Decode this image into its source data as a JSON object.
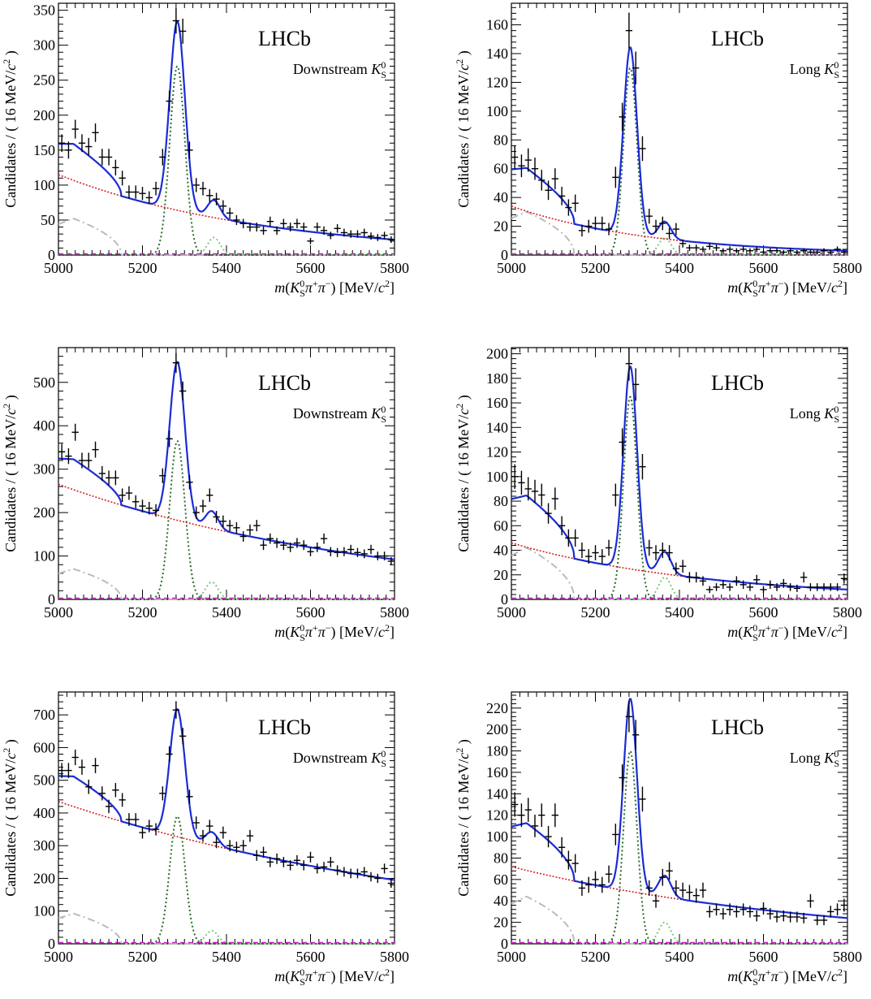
{
  "chart_data": [
    {
      "type": "scatter",
      "experiment": "LHCb",
      "sample": "Downstream",
      "xlabel": "m(K0Sπ+π−) [MeV/c2]",
      "ylabel": "Candidates / ( 16 MeV/c2 )",
      "xlim": [
        5000,
        5800
      ],
      "ylim": [
        0,
        360
      ],
      "xticks": [
        5000,
        5200,
        5400,
        5600,
        5800
      ],
      "yticks": [
        0,
        50,
        100,
        150,
        200,
        250,
        300,
        350
      ],
      "data": {
        "x": [
          5008,
          5024,
          5040,
          5056,
          5072,
          5088,
          5104,
          5120,
          5136,
          5152,
          5168,
          5184,
          5200,
          5216,
          5232,
          5248,
          5264,
          5280,
          5296,
          5312,
          5328,
          5344,
          5360,
          5376,
          5392,
          5408,
          5424,
          5440,
          5456,
          5472,
          5488,
          5504,
          5520,
          5536,
          5552,
          5568,
          5584,
          5600,
          5616,
          5632,
          5648,
          5664,
          5680,
          5696,
          5712,
          5728,
          5744,
          5760,
          5776,
          5792
        ],
        "y": [
          160,
          150,
          180,
          160,
          155,
          175,
          140,
          140,
          125,
          110,
          90,
          90,
          88,
          82,
          95,
          140,
          220,
          335,
          320,
          150,
          100,
          95,
          85,
          80,
          70,
          60,
          50,
          45,
          40,
          40,
          35,
          48,
          35,
          45,
          40,
          45,
          40,
          20,
          40,
          35,
          28,
          38,
          32,
          30,
          30,
          32,
          27,
          25,
          28,
          22
        ]
      },
      "signal": {
        "mean": 5283,
        "sigma": 18,
        "amp": 270
      },
      "bs_signal": {
        "mean": 5370,
        "sigma": 15,
        "amp": 25
      },
      "combinatorial": {
        "at_min": 115,
        "at_max": 22
      },
      "partreco": {
        "amp": 52,
        "edge": 5150
      },
      "line_colors": {
        "total": "#1a2bd6",
        "signal": "#2a6a2a",
        "bs": "#7ec87e",
        "comb": "#d42020",
        "partreco": "#bbbbbb"
      }
    },
    {
      "type": "scatter",
      "experiment": "LHCb",
      "sample": "Long",
      "xlabel": "m(K0Sπ+π−) [MeV/c2]",
      "ylabel": "Candidates / ( 16 MeV/c2 )",
      "xlim": [
        5000,
        5800
      ],
      "ylim": [
        0,
        175
      ],
      "xticks": [
        5000,
        5200,
        5400,
        5600,
        5800
      ],
      "yticks": [
        0,
        20,
        40,
        60,
        80,
        100,
        120,
        140,
        160
      ],
      "data": {
        "x": [
          5008,
          5024,
          5040,
          5056,
          5072,
          5088,
          5104,
          5120,
          5136,
          5152,
          5168,
          5184,
          5200,
          5216,
          5232,
          5248,
          5264,
          5280,
          5296,
          5312,
          5328,
          5344,
          5360,
          5376,
          5392,
          5408,
          5424,
          5440,
          5456,
          5472,
          5488,
          5504,
          5520,
          5536,
          5552,
          5568,
          5584,
          5600,
          5616,
          5632,
          5648,
          5664,
          5680,
          5696,
          5712,
          5728,
          5744,
          5760,
          5776,
          5792
        ],
        "y": [
          68,
          62,
          66,
          60,
          52,
          45,
          53,
          41,
          33,
          36,
          17,
          20,
          22,
          22,
          18,
          54,
          96,
          156,
          130,
          74,
          27,
          20,
          22,
          15,
          18,
          8,
          5,
          5,
          4,
          6,
          5,
          3,
          4,
          3,
          4,
          3,
          4,
          2,
          3,
          3,
          2,
          3,
          2,
          3,
          2,
          2,
          3,
          2,
          4,
          2
        ]
      },
      "signal": {
        "mean": 5283,
        "sigma": 16,
        "amp": 130
      },
      "bs_signal": {
        "mean": 5365,
        "sigma": 15,
        "amp": 12
      },
      "combinatorial": {
        "at_min": 34,
        "at_max": 3
      },
      "partreco": {
        "amp": 30,
        "edge": 5150
      },
      "line_colors": {
        "total": "#1a2bd6",
        "signal": "#2a6a2a",
        "bs": "#7ec87e",
        "comb": "#d42020",
        "partreco": "#bbbbbb"
      }
    },
    {
      "type": "scatter",
      "experiment": "LHCb",
      "sample": "Downstream",
      "xlabel": "m(K0Sπ+π−) [MeV/c2]",
      "ylabel": "Candidates / ( 16 MeV/c2 )",
      "xlim": [
        5000,
        5800
      ],
      "ylim": [
        0,
        580
      ],
      "xticks": [
        5000,
        5200,
        5400,
        5600,
        5800
      ],
      "yticks": [
        0,
        100,
        200,
        300,
        400,
        500
      ],
      "data": {
        "x": [
          5008,
          5024,
          5040,
          5056,
          5072,
          5088,
          5104,
          5120,
          5136,
          5152,
          5168,
          5184,
          5200,
          5216,
          5232,
          5248,
          5264,
          5280,
          5296,
          5312,
          5328,
          5344,
          5360,
          5376,
          5392,
          5408,
          5424,
          5440,
          5456,
          5472,
          5488,
          5504,
          5520,
          5536,
          5552,
          5568,
          5584,
          5600,
          5616,
          5632,
          5648,
          5664,
          5680,
          5696,
          5712,
          5728,
          5744,
          5760,
          5776,
          5792
        ],
        "y": [
          340,
          330,
          385,
          320,
          320,
          345,
          290,
          280,
          280,
          240,
          245,
          225,
          215,
          210,
          205,
          285,
          370,
          545,
          480,
          270,
          200,
          215,
          240,
          190,
          180,
          170,
          165,
          145,
          160,
          170,
          125,
          140,
          130,
          125,
          120,
          130,
          125,
          110,
          120,
          140,
          110,
          108,
          110,
          115,
          108,
          105,
          115,
          100,
          100,
          88
        ]
      },
      "signal": {
        "mean": 5283,
        "sigma": 18,
        "amp": 365
      },
      "bs_signal": {
        "mean": 5365,
        "sigma": 15,
        "amp": 40
      },
      "combinatorial": {
        "at_min": 265,
        "at_max": 92
      },
      "partreco": {
        "amp": 70,
        "edge": 5150
      },
      "line_colors": {
        "total": "#1a2bd6",
        "signal": "#2a6a2a",
        "bs": "#7ec87e",
        "comb": "#d42020",
        "partreco": "#bbbbbb"
      }
    },
    {
      "type": "scatter",
      "experiment": "LHCb",
      "sample": "Long",
      "xlabel": "m(K0Sπ+π−) [MeV/c2]",
      "ylabel": "Candidates / ( 16 MeV/c2 )",
      "xlim": [
        5000,
        5800
      ],
      "ylim": [
        0,
        205
      ],
      "xticks": [
        5000,
        5200,
        5400,
        5600,
        5800
      ],
      "yticks": [
        0,
        20,
        40,
        60,
        80,
        100,
        120,
        140,
        160,
        180,
        200
      ],
      "data": {
        "x": [
          5008,
          5024,
          5040,
          5056,
          5072,
          5088,
          5104,
          5120,
          5136,
          5152,
          5168,
          5184,
          5200,
          5216,
          5232,
          5248,
          5264,
          5280,
          5296,
          5312,
          5328,
          5344,
          5360,
          5376,
          5392,
          5408,
          5424,
          5440,
          5456,
          5472,
          5488,
          5504,
          5520,
          5536,
          5552,
          5568,
          5584,
          5600,
          5616,
          5632,
          5648,
          5664,
          5680,
          5696,
          5712,
          5728,
          5744,
          5760,
          5776,
          5792
        ],
        "y": [
          100,
          95,
          90,
          88,
          85,
          70,
          82,
          60,
          50,
          50,
          40,
          35,
          38,
          35,
          42,
          85,
          128,
          192,
          175,
          108,
          42,
          38,
          40,
          38,
          25,
          27,
          18,
          18,
          15,
          8,
          10,
          12,
          10,
          15,
          12,
          10,
          16,
          8,
          12,
          10,
          13,
          10,
          9,
          18,
          10,
          10,
          10,
          10,
          10,
          17
        ]
      },
      "signal": {
        "mean": 5283,
        "sigma": 16,
        "amp": 165
      },
      "bs_signal": {
        "mean": 5365,
        "sigma": 15,
        "amp": 18
      },
      "combinatorial": {
        "at_min": 46,
        "at_max": 8
      },
      "partreco": {
        "amp": 42,
        "edge": 5150
      },
      "line_colors": {
        "total": "#1a2bd6",
        "signal": "#2a6a2a",
        "bs": "#7ec87e",
        "comb": "#d42020",
        "partreco": "#bbbbbb"
      }
    },
    {
      "type": "scatter",
      "experiment": "LHCb",
      "sample": "Downstream",
      "xlabel": "m(K0Sπ+π−) [MeV/c2]",
      "ylabel": "Candidates / ( 16 MeV/c2 )",
      "xlim": [
        5000,
        5800
      ],
      "ylim": [
        0,
        770
      ],
      "xticks": [
        5000,
        5200,
        5400,
        5600,
        5800
      ],
      "yticks": [
        0,
        100,
        200,
        300,
        400,
        500,
        600,
        700
      ],
      "data": {
        "x": [
          5008,
          5024,
          5040,
          5056,
          5072,
          5088,
          5104,
          5120,
          5136,
          5152,
          5168,
          5184,
          5200,
          5216,
          5232,
          5248,
          5264,
          5280,
          5296,
          5312,
          5328,
          5344,
          5360,
          5376,
          5392,
          5408,
          5424,
          5440,
          5456,
          5472,
          5488,
          5504,
          5520,
          5536,
          5552,
          5568,
          5584,
          5600,
          5616,
          5632,
          5648,
          5664,
          5680,
          5696,
          5712,
          5728,
          5744,
          5760,
          5776,
          5792
        ],
        "y": [
          530,
          530,
          570,
          540,
          480,
          545,
          460,
          420,
          470,
          440,
          380,
          380,
          340,
          360,
          350,
          460,
          580,
          715,
          635,
          450,
          370,
          330,
          360,
          310,
          340,
          300,
          295,
          300,
          330,
          270,
          280,
          250,
          260,
          250,
          240,
          255,
          240,
          265,
          230,
          235,
          250,
          225,
          220,
          215,
          215,
          220,
          205,
          200,
          230,
          185
        ]
      },
      "signal": {
        "mean": 5283,
        "sigma": 18,
        "amp": 390
      },
      "bs_signal": {
        "mean": 5365,
        "sigma": 15,
        "amp": 40
      },
      "combinatorial": {
        "at_min": 435,
        "at_max": 195
      },
      "partreco": {
        "amp": 92,
        "edge": 5150
      },
      "line_colors": {
        "total": "#1a2bd6",
        "signal": "#2a6a2a",
        "bs": "#7ec87e",
        "comb": "#d42020",
        "partreco": "#bbbbbb"
      }
    },
    {
      "type": "scatter",
      "experiment": "LHCb",
      "sample": "Long",
      "xlabel": "m(K0Sπ+π−) [MeV/c2]",
      "ylabel": "Candidates / ( 16 MeV/c2 )",
      "xlim": [
        5000,
        5800
      ],
      "ylim": [
        0,
        235
      ],
      "xticks": [
        5000,
        5200,
        5400,
        5600,
        5800
      ],
      "yticks": [
        0,
        20,
        40,
        60,
        80,
        100,
        120,
        140,
        160,
        180,
        200,
        220
      ],
      "data": {
        "x": [
          5008,
          5024,
          5040,
          5056,
          5072,
          5088,
          5104,
          5120,
          5136,
          5152,
          5168,
          5184,
          5200,
          5216,
          5232,
          5248,
          5264,
          5280,
          5296,
          5312,
          5328,
          5344,
          5360,
          5376,
          5392,
          5408,
          5424,
          5440,
          5456,
          5472,
          5488,
          5504,
          5520,
          5536,
          5552,
          5568,
          5584,
          5600,
          5616,
          5632,
          5648,
          5664,
          5680,
          5696,
          5712,
          5728,
          5744,
          5760,
          5776,
          5792
        ],
        "y": [
          130,
          120,
          125,
          110,
          120,
          100,
          120,
          90,
          78,
          75,
          52,
          55,
          60,
          55,
          65,
          102,
          155,
          212,
          195,
          135,
          52,
          40,
          62,
          68,
          52,
          50,
          48,
          45,
          50,
          30,
          32,
          28,
          32,
          30,
          32,
          30,
          26,
          33,
          28,
          25,
          26,
          25,
          25,
          24,
          40,
          22,
          22,
          30,
          32,
          36
        ]
      },
      "signal": {
        "mean": 5283,
        "sigma": 16,
        "amp": 180
      },
      "bs_signal": {
        "mean": 5365,
        "sigma": 15,
        "amp": 20
      },
      "combinatorial": {
        "at_min": 72,
        "at_max": 24
      },
      "partreco": {
        "amp": 44,
        "edge": 5150
      },
      "line_colors": {
        "total": "#1a2bd6",
        "signal": "#2a6a2a",
        "bs": "#7ec87e",
        "comb": "#d42020",
        "partreco": "#bbbbbb"
      }
    }
  ]
}
